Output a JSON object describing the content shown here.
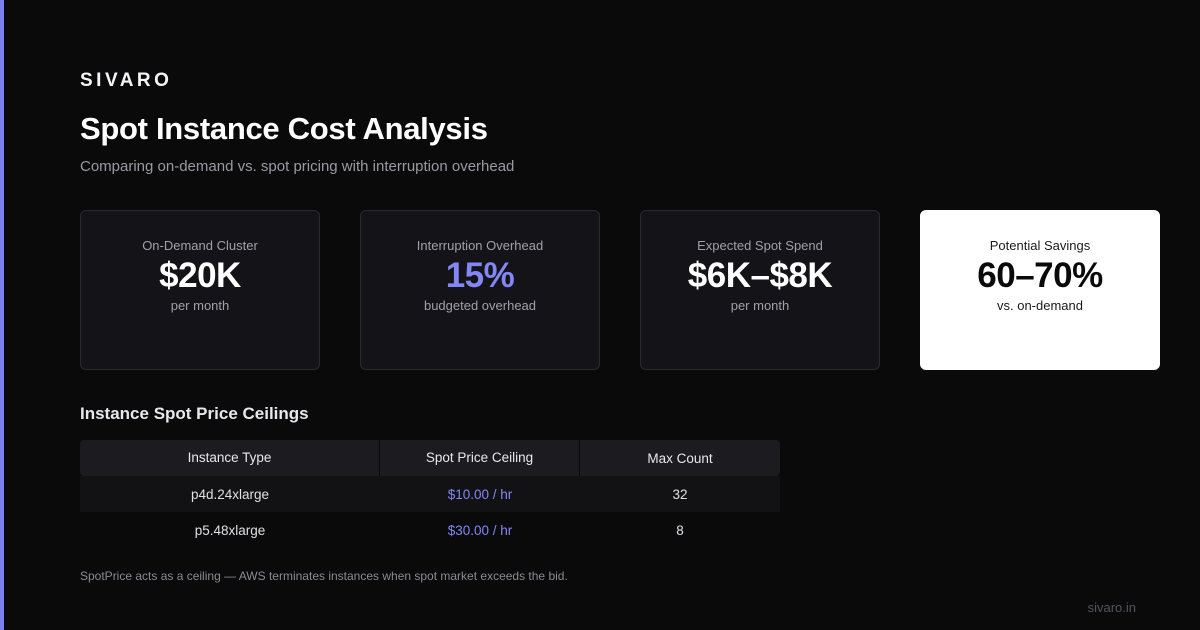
{
  "brand": "SIVARO",
  "title": "Spot Instance Cost Analysis",
  "subtitle": "Comparing on-demand vs. spot pricing with interruption overhead",
  "colors": {
    "accent": "#7b7fef",
    "background": "#0a0a0b",
    "card": "#141418"
  },
  "cards": [
    {
      "label": "On-Demand Cluster",
      "value": "$20K",
      "sub": "per month"
    },
    {
      "label": "Interruption Overhead",
      "value": "15%",
      "sub": "budgeted overhead"
    },
    {
      "label": "Expected Spot Spend",
      "value": "$6K–$8K",
      "sub": "per month"
    },
    {
      "label": "Potential Savings",
      "value": "60–70%",
      "sub": "vs. on-demand"
    }
  ],
  "table": {
    "title": "Instance Spot Price Ceilings",
    "headers": [
      "Instance Type",
      "Spot Price Ceiling",
      "Max Count"
    ],
    "rows": [
      [
        "p4d.24xlarge",
        "$10.00 / hr",
        "32"
      ],
      [
        "p5.48xlarge",
        "$30.00 / hr",
        "8"
      ]
    ]
  },
  "footnote": "SpotPrice acts as a ceiling — AWS terminates instances when spot market exceeds the bid.",
  "site": "sivaro.in"
}
